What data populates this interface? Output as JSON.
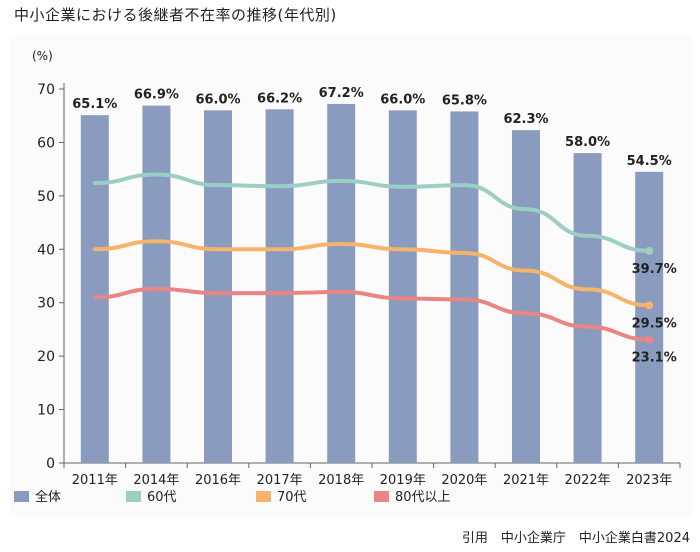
{
  "title": "中小企業における後継者不在率の推移(年代別)",
  "source": "引用　中小企業庁　中小企業白書2024",
  "chart_data": {
    "type": "bar",
    "ylabel": "(%)",
    "ylim": [
      0,
      70
    ],
    "yticks": [
      0,
      10,
      20,
      30,
      40,
      50,
      60,
      70
    ],
    "categories": [
      "2011年",
      "2014年",
      "2016年",
      "2017年",
      "2018年",
      "2019年",
      "2020年",
      "2021年",
      "2022年",
      "2023年"
    ],
    "bar_series": {
      "name": "全体",
      "color": "#8a9bc0",
      "values": [
        65.1,
        66.9,
        66.0,
        66.2,
        67.2,
        66.0,
        65.8,
        62.3,
        58.0,
        54.5
      ],
      "labels": [
        "65.1%",
        "66.9%",
        "66.0%",
        "66.2%",
        "67.2%",
        "66.0%",
        "65.8%",
        "62.3%",
        "58.0%",
        "54.5%"
      ]
    },
    "line_series": [
      {
        "name": "60代",
        "color": "#9ccfc3",
        "values": [
          52.4,
          54.0,
          52.0,
          51.8,
          52.8,
          51.7,
          52.0,
          47.5,
          42.5,
          39.7
        ],
        "end_label": "39.7%"
      },
      {
        "name": "70代",
        "color": "#f5b46a",
        "values": [
          40.0,
          41.5,
          40.0,
          40.0,
          41.0,
          40.0,
          39.3,
          36.0,
          32.5,
          29.5
        ],
        "end_label": "29.5%"
      },
      {
        "name": "80代以上",
        "color": "#ea8583",
        "values": [
          31.0,
          32.6,
          31.8,
          31.8,
          32.0,
          30.8,
          30.6,
          28.0,
          25.5,
          23.1
        ],
        "end_label": "23.1%"
      }
    ],
    "legend": [
      {
        "label": "全体",
        "color": "#8a9bc0"
      },
      {
        "label": "60代",
        "color": "#9ccfc3"
      },
      {
        "label": "70代",
        "color": "#f5b46a"
      },
      {
        "label": "80代以上",
        "color": "#ea8583"
      }
    ],
    "legend_position": "bottom"
  }
}
